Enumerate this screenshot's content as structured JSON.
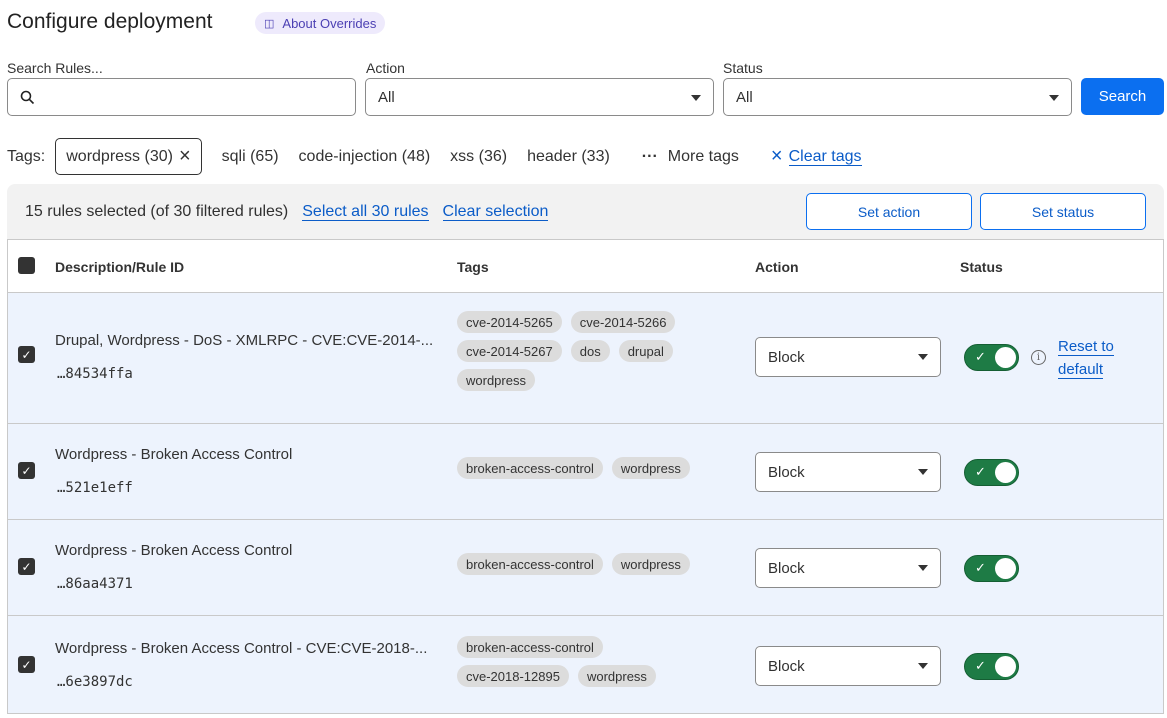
{
  "header": {
    "title": "Configure deployment",
    "about_label": "About Overrides"
  },
  "filters": {
    "search_label": "Search Rules...",
    "search_value": "",
    "action_label": "Action",
    "action_value": "All",
    "status_label": "Status",
    "status_value": "All",
    "search_button": "Search"
  },
  "tags": {
    "label": "Tags:",
    "active": "wordpress (30)",
    "items": [
      "sqli (65)",
      "code-injection (48)",
      "xss (36)",
      "header (33)"
    ],
    "more": "More tags",
    "clear": "Clear tags"
  },
  "selection": {
    "summary": "15 rules selected (of 30 filtered rules)",
    "select_all": "Select all 30 rules",
    "clear": "Clear selection",
    "set_action": "Set action",
    "set_status": "Set status"
  },
  "table": {
    "columns": [
      "Description/Rule ID",
      "Tags",
      "Action",
      "Status"
    ],
    "rows": [
      {
        "description": "Drupal, Wordpress - DoS - XMLRPC - CVE:CVE-2014-...",
        "id": "…84534ffa",
        "tags": [
          "cve-2014-5265",
          "cve-2014-5266",
          "cve-2014-5267",
          "dos",
          "drupal",
          "wordpress"
        ],
        "action": "Block",
        "enabled": true,
        "reset": "Reset to default"
      },
      {
        "description": "Wordpress - Broken Access Control",
        "id": "…521e1eff",
        "tags": [
          "broken-access-control",
          "wordpress"
        ],
        "action": "Block",
        "enabled": true
      },
      {
        "description": "Wordpress - Broken Access Control",
        "id": "…86aa4371",
        "tags": [
          "broken-access-control",
          "wordpress"
        ],
        "action": "Block",
        "enabled": true
      },
      {
        "description": "Wordpress - Broken Access Control - CVE:CVE-2018-...",
        "id": "…6e3897dc",
        "tags": [
          "broken-access-control",
          "cve-2018-12895",
          "wordpress"
        ],
        "action": "Block",
        "enabled": true
      }
    ]
  },
  "colors": {
    "primary": "#0b6ff0",
    "toggle_on": "#1e7b45",
    "row_selected": "#edf3fd"
  }
}
